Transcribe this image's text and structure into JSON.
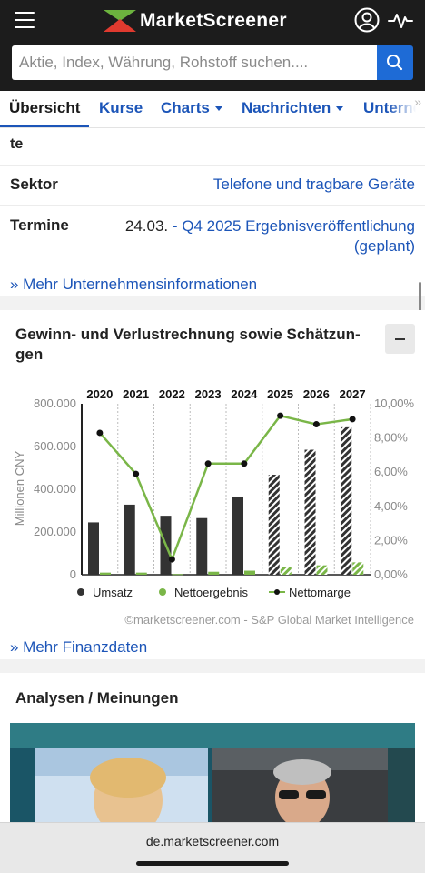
{
  "header": {
    "logo_text": "MarketScreener",
    "menu_icon": "hamburger-menu-icon",
    "account_icon": "user-account-icon",
    "activity_icon": "pulse-icon",
    "search": {
      "placeholder": "Aktie, Index, Währung, Rohstoff suchen....",
      "button_icon": "search-icon"
    },
    "colors": {
      "bar_bg": "#1c1c1c",
      "accent_blue": "#1e6bd6",
      "logo_green": "#6cb33e",
      "logo_red": "#e03a2f"
    }
  },
  "tabs": [
    {
      "label": "Übersicht",
      "active": true,
      "dropdown": false
    },
    {
      "label": "Kurse",
      "active": false,
      "dropdown": false
    },
    {
      "label": "Charts",
      "active": false,
      "dropdown": true
    },
    {
      "label": "Nachrichten",
      "active": false,
      "dropdown": true
    },
    {
      "label": "Unterne",
      "active": false,
      "dropdown": false
    }
  ],
  "company_info": {
    "cut_label": "te",
    "sector": {
      "label": "Sektor",
      "value": "Telefone und tragbare Geräte"
    },
    "dates": {
      "label": "Termine",
      "date": "24.03.",
      "line1": "- Q4 2025 Ergebnisveröffentlichung",
      "line2": "(geplant)"
    },
    "more_link": "» Mehr Unternehmensinformationen"
  },
  "financials": {
    "title_line1": "Gewinn- und Verlustrechnung sowie Schätzun-",
    "title_line2": "gen",
    "collapse_icon": "minus-icon",
    "copyright": "©marketscreener.com - S&P Global Market Intelligence",
    "more_link": "» Mehr Finanzdaten"
  },
  "chart_data": {
    "type": "bar",
    "categories": [
      "2020",
      "2021",
      "2022",
      "2023",
      "2024",
      "2025",
      "2026",
      "2027"
    ],
    "estimate_from": "2025",
    "ylabel": "Millionen CNY",
    "ylim": [
      0,
      800000
    ],
    "yticks": [
      "0",
      "200.000",
      "400.000",
      "600.000",
      "800.000"
    ],
    "y2lim": [
      0,
      10
    ],
    "y2ticks": [
      "0,00%",
      "2,00%",
      "4,00%",
      "6,00%",
      "8,00%",
      "10,00%"
    ],
    "series": [
      {
        "name": "Umsatz",
        "type": "bar",
        "color": "#333333",
        "values": [
          245000,
          328000,
          276000,
          265000,
          366000,
          468000,
          585000,
          690000
        ]
      },
      {
        "name": "Nettoergebnis",
        "type": "bar",
        "color": "#7ab648",
        "values": [
          10000,
          10000,
          3000,
          14000,
          19000,
          35000,
          44000,
          58000
        ]
      },
      {
        "name": "Nettomarge",
        "type": "line",
        "axis": "right",
        "color": "#7ab648",
        "values": [
          8.3,
          5.9,
          0.9,
          6.5,
          6.5,
          9.3,
          8.8,
          9.1
        ]
      }
    ],
    "legend_position": "bottom",
    "grid": "vertical-dashed"
  },
  "analysis": {
    "title": "Analysen / Meinungen"
  },
  "browser": {
    "url": "de.marketscreener.com"
  }
}
